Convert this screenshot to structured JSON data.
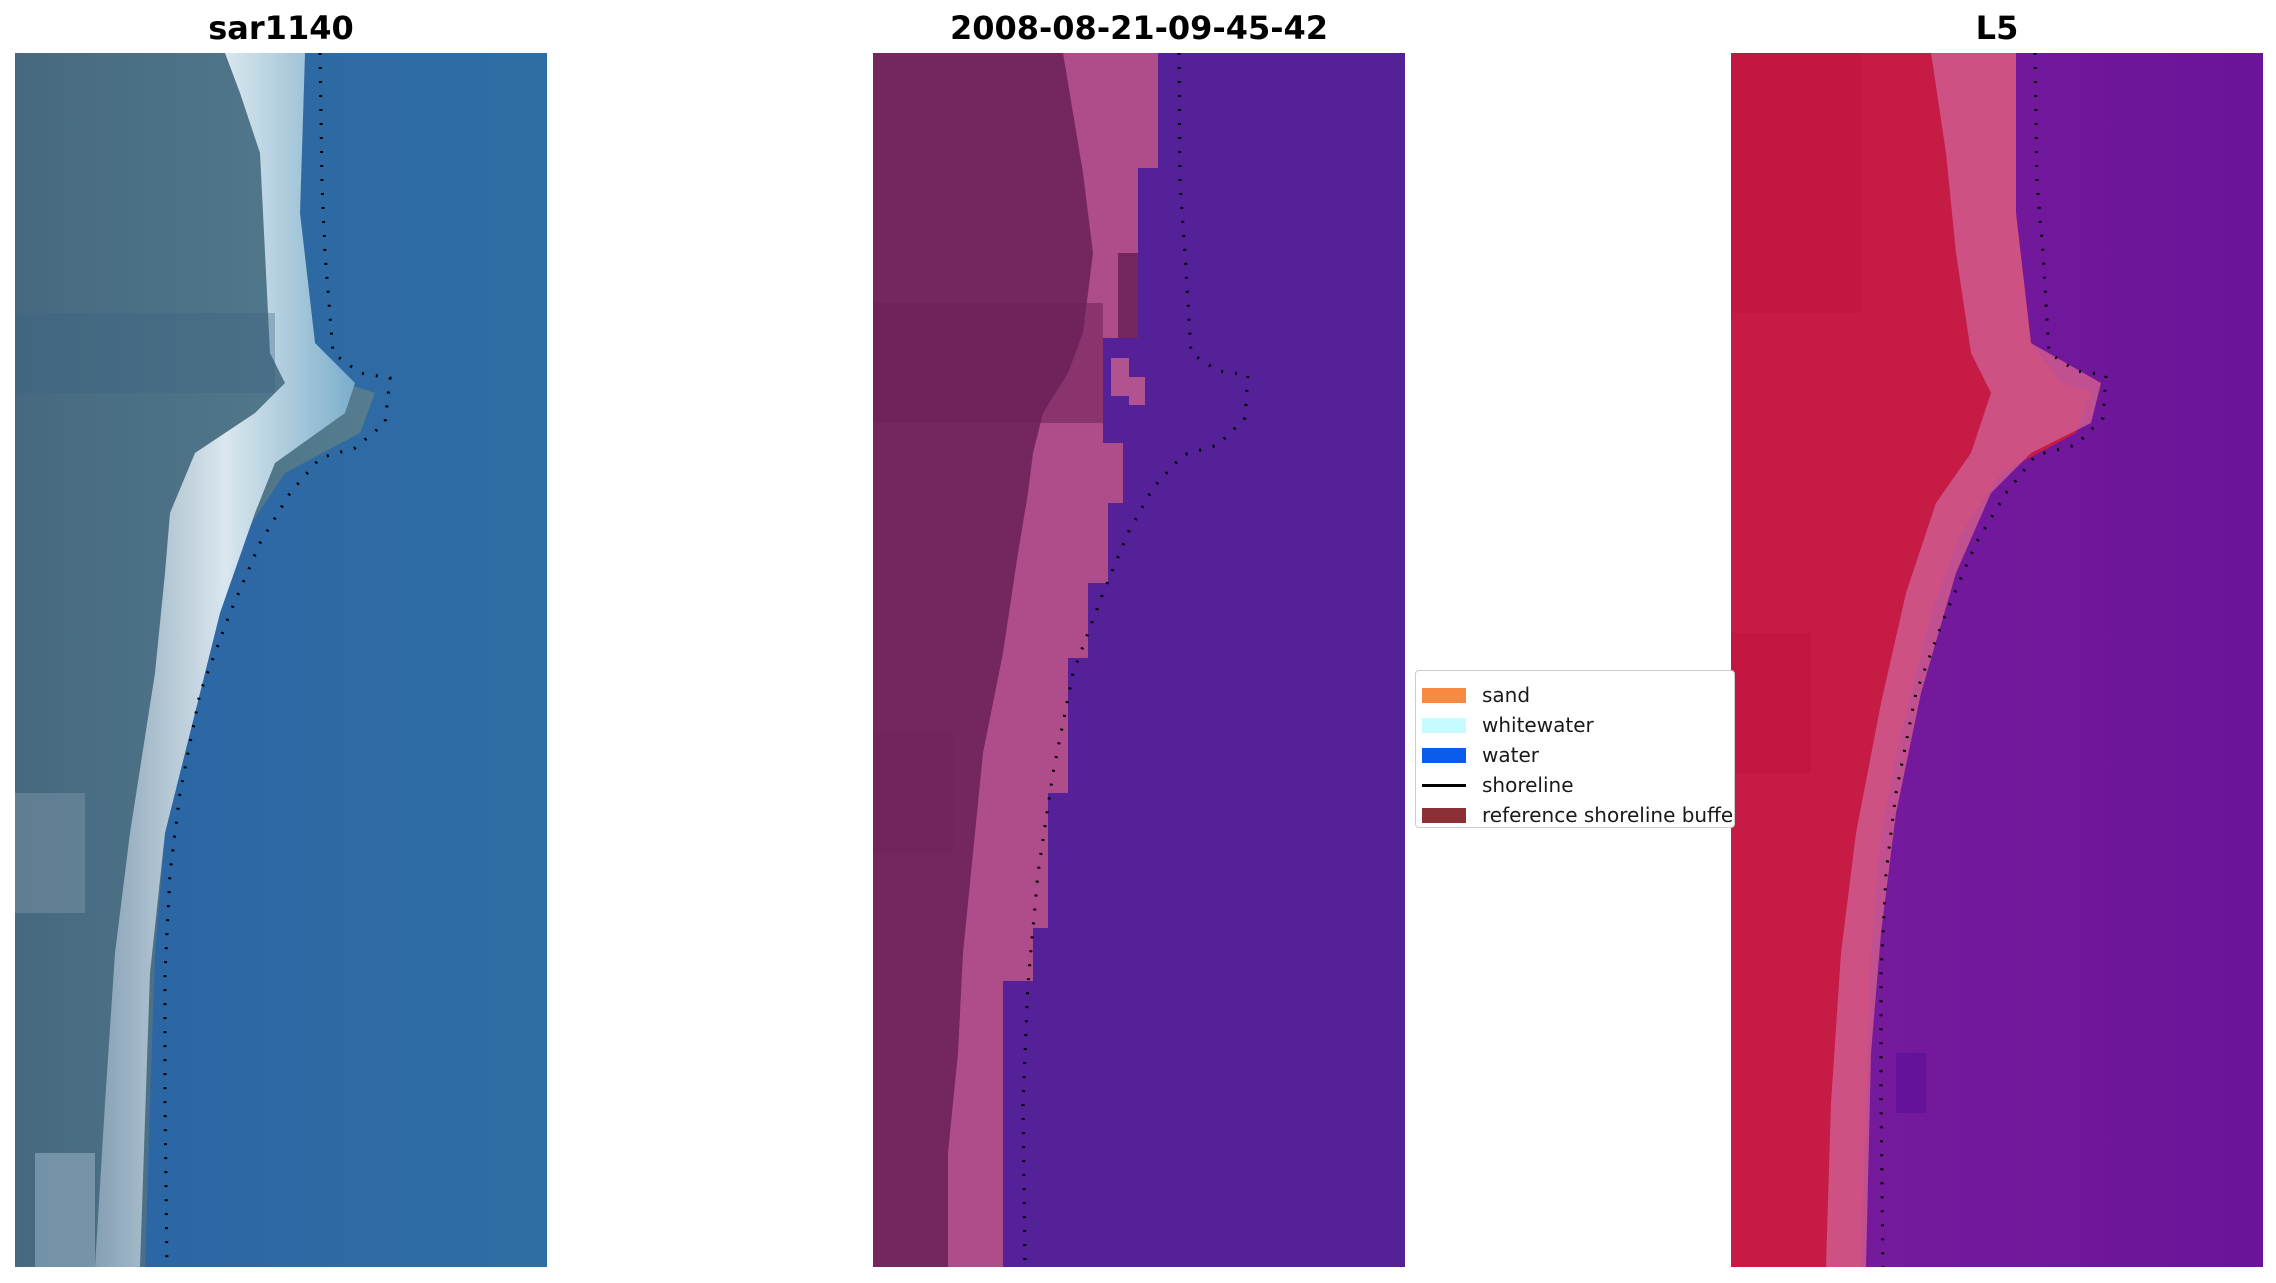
{
  "panels": [
    {
      "title": "sar1140"
    },
    {
      "title": "2008-08-21-09-45-42"
    },
    {
      "title": "L5"
    }
  ],
  "legend": {
    "entries": [
      {
        "label": "sand",
        "color": "#f68a42",
        "kind": "patch"
      },
      {
        "label": "whitewater",
        "color": "#c6fcff",
        "kind": "patch"
      },
      {
        "label": "water",
        "color": "#0b5cec",
        "kind": "patch"
      },
      {
        "label": "shoreline",
        "color": "#000000",
        "kind": "line"
      },
      {
        "label": "reference shoreline buffer",
        "color": "#8b3034",
        "kind": "patch"
      }
    ]
  },
  "colors": {
    "rgb_water": "#2d66a0",
    "rgb_land": "#4a6e86",
    "rgb_foam": "#dcecf4",
    "class_land": "#74275f",
    "class_beach": "#b85592",
    "class_water": "#542198",
    "index_land": "#c51b45",
    "index_beach": "#cf5b8e",
    "index_water": "#6c139a",
    "shoreline": "#000000"
  }
}
